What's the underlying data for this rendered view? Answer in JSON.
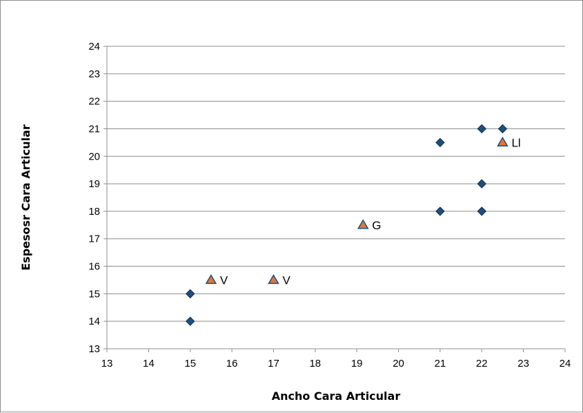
{
  "chart_data": {
    "type": "scatter",
    "xlabel": "Ancho Cara Articular",
    "ylabel": "Espesosr  Cara Articular",
    "xlim": [
      13,
      24
    ],
    "ylim": [
      13,
      24
    ],
    "x_ticks": [
      13,
      14,
      15,
      16,
      17,
      18,
      19,
      20,
      21,
      22,
      23,
      24
    ],
    "y_ticks": [
      13,
      14,
      15,
      16,
      17,
      18,
      19,
      20,
      21,
      22,
      23,
      24
    ],
    "grid": "horizontal",
    "legend": "none",
    "series": [
      {
        "marker": "diamond",
        "color": "#1f4e79",
        "points": [
          {
            "x": 15,
            "y": 14
          },
          {
            "x": 15,
            "y": 15
          },
          {
            "x": 21,
            "y": 18
          },
          {
            "x": 22,
            "y": 18
          },
          {
            "x": 22,
            "y": 19
          },
          {
            "x": 21,
            "y": 20.5
          },
          {
            "x": 22,
            "y": 21
          },
          {
            "x": 22.5,
            "y": 21
          }
        ]
      },
      {
        "marker": "triangle",
        "color": "#e8762c",
        "edge_color": "#1f4e79",
        "points": [
          {
            "x": 15.5,
            "y": 15.5,
            "label": "V"
          },
          {
            "x": 17,
            "y": 15.5,
            "label": "V"
          },
          {
            "x": 19.15,
            "y": 17.5,
            "label": "G"
          },
          {
            "x": 22.5,
            "y": 20.5,
            "label": "Ll"
          }
        ]
      }
    ]
  }
}
